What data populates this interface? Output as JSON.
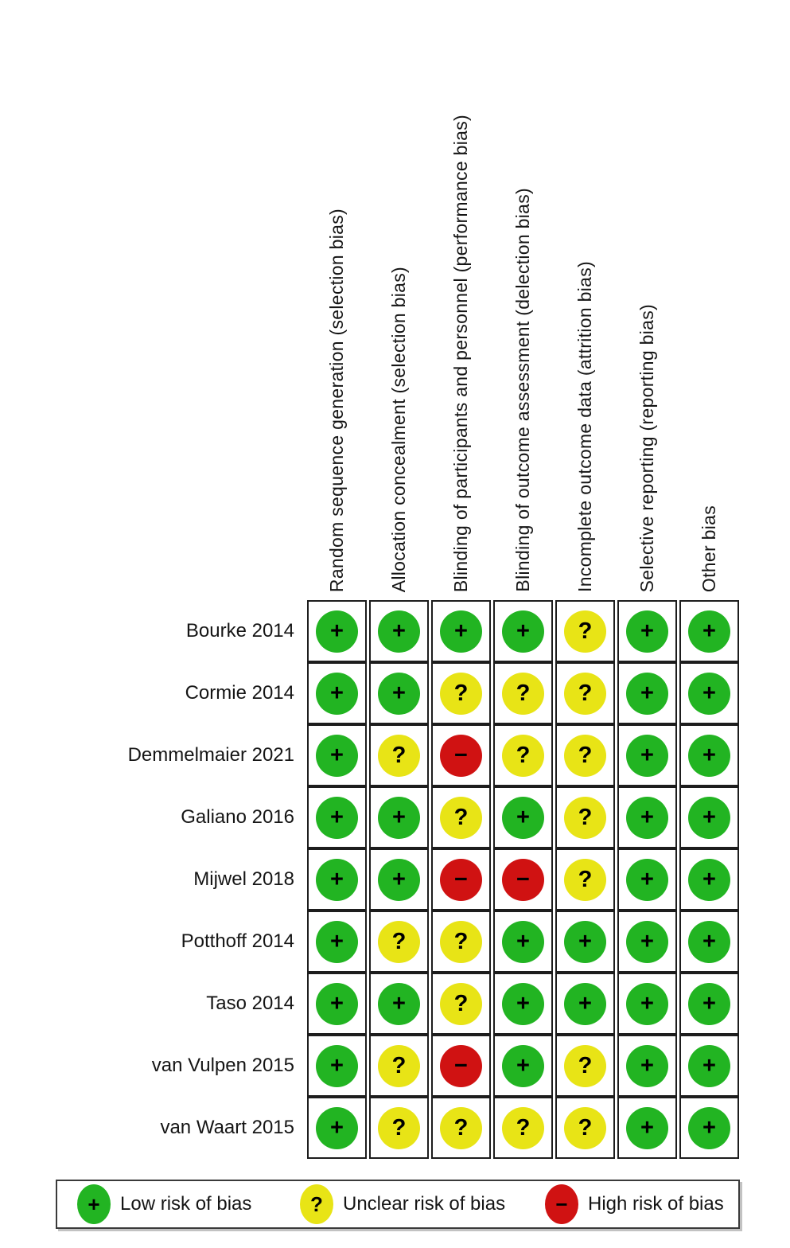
{
  "chart_data": {
    "type": "heatmap",
    "title": "",
    "columns": [
      "Random sequence generation (selection bias)",
      "Allocation concealment (selection bias)",
      "Blinding of participants and personnel (performance bias)",
      "Blinding of outcome assessment (delection bias)",
      "Incomplete outcome data (attrition bias)",
      "Selective reporting (reporting bias)",
      "Other bias"
    ],
    "rows": [
      {
        "study": "Bourke 2014",
        "judgements": [
          "low",
          "low",
          "low",
          "low",
          "unclear",
          "low",
          "low"
        ]
      },
      {
        "study": "Cormie 2014",
        "judgements": [
          "low",
          "low",
          "unclear",
          "unclear",
          "unclear",
          "low",
          "low"
        ]
      },
      {
        "study": "Demmelmaier 2021",
        "judgements": [
          "low",
          "unclear",
          "high",
          "unclear",
          "unclear",
          "low",
          "low"
        ]
      },
      {
        "study": "Galiano 2016",
        "judgements": [
          "low",
          "low",
          "unclear",
          "low",
          "unclear",
          "low",
          "low"
        ]
      },
      {
        "study": "Mijwel 2018",
        "judgements": [
          "low",
          "low",
          "high",
          "high",
          "unclear",
          "low",
          "low"
        ]
      },
      {
        "study": "Potthoff 2014",
        "judgements": [
          "low",
          "unclear",
          "unclear",
          "low",
          "low",
          "low",
          "low"
        ]
      },
      {
        "study": "Taso 2014",
        "judgements": [
          "low",
          "low",
          "unclear",
          "low",
          "low",
          "low",
          "low"
        ]
      },
      {
        "study": "van Vulpen 2015",
        "judgements": [
          "low",
          "unclear",
          "high",
          "low",
          "unclear",
          "low",
          "low"
        ]
      },
      {
        "study": "van Waart 2015",
        "judgements": [
          "low",
          "unclear",
          "unclear",
          "unclear",
          "unclear",
          "low",
          "low"
        ]
      }
    ],
    "symbols": {
      "low": "+",
      "unclear": "?",
      "high": "−"
    },
    "colors": {
      "low": "#22b422",
      "unclear": "#e8e416",
      "high": "#d01212"
    },
    "legend": [
      {
        "risk": "low",
        "label": "Low risk of bias"
      },
      {
        "risk": "unclear",
        "label": "Unclear risk of bias"
      },
      {
        "risk": "high",
        "label": "High risk of bias"
      }
    ],
    "legend_position": "bottom",
    "grid": true
  }
}
